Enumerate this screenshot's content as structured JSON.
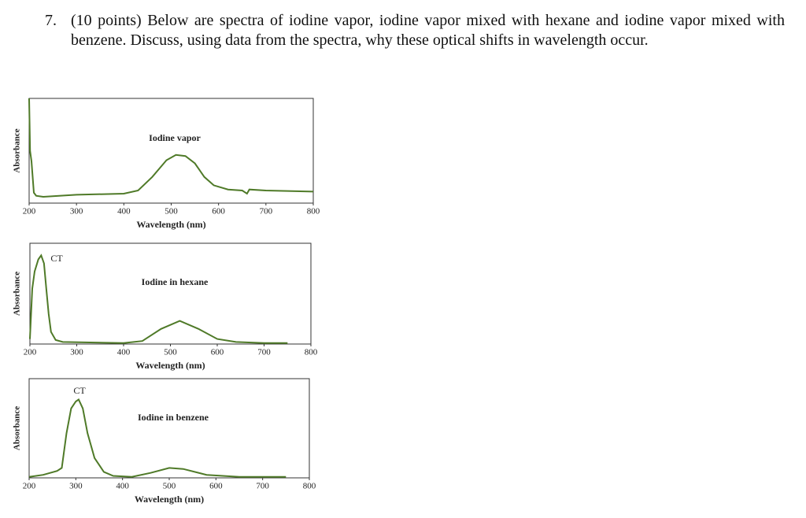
{
  "question": {
    "number": "7.",
    "text": "(10 points) Below are spectra of iodine vapor, iodine vapor mixed with hexane and iodine vapor mixed with benzene. Discuss, using data from the spectra, why these optical shifts in wavelength occur."
  },
  "chart_data": [
    {
      "type": "line",
      "label": "Iodine vapor",
      "xlabel": "Wavelength (nm)",
      "ylabel": "Absorbance",
      "color": "#4f7a28",
      "xlim": [
        200,
        800
      ],
      "xticks": [
        200,
        300,
        400,
        500,
        600,
        700,
        800
      ],
      "ylim": [
        0,
        1
      ],
      "x": [
        200,
        202,
        205,
        210,
        215,
        230,
        300,
        400,
        430,
        460,
        490,
        510,
        530,
        550,
        570,
        590,
        620,
        650,
        660,
        665,
        700,
        800
      ],
      "values": [
        1.0,
        0.5,
        0.4,
        0.1,
        0.07,
        0.06,
        0.08,
        0.09,
        0.12,
        0.25,
        0.41,
        0.46,
        0.45,
        0.38,
        0.25,
        0.17,
        0.13,
        0.12,
        0.09,
        0.13,
        0.12,
        0.11
      ]
    },
    {
      "type": "line",
      "label": "Iodine in hexane",
      "annotation": "CT",
      "xlabel": "Wavelength (nm)",
      "ylabel": "Absorbance",
      "color": "#4f7a28",
      "xlim": [
        200,
        800
      ],
      "xticks": [
        200,
        300,
        400,
        500,
        600,
        700,
        800
      ],
      "ylim": [
        0,
        1
      ],
      "x": [
        200,
        205,
        210,
        218,
        224,
        230,
        235,
        240,
        245,
        255,
        270,
        400,
        440,
        480,
        520,
        560,
        600,
        640,
        700,
        750
      ],
      "values": [
        0.05,
        0.55,
        0.72,
        0.84,
        0.88,
        0.8,
        0.55,
        0.3,
        0.12,
        0.04,
        0.02,
        0.01,
        0.03,
        0.15,
        0.23,
        0.15,
        0.05,
        0.02,
        0.01,
        0.01
      ]
    },
    {
      "type": "line",
      "label": "Iodine in benzene",
      "annotation": "CT",
      "xlabel": "Wavelength (nm)",
      "ylabel": "Absorbance",
      "color": "#4f7a28",
      "xlim": [
        200,
        800
      ],
      "xticks": [
        200,
        300,
        400,
        500,
        600,
        700,
        800
      ],
      "ylim": [
        0,
        1
      ],
      "x": [
        200,
        230,
        260,
        270,
        280,
        290,
        300,
        306,
        315,
        325,
        340,
        360,
        380,
        420,
        460,
        500,
        530,
        580,
        650,
        750
      ],
      "values": [
        0.01,
        0.03,
        0.07,
        0.1,
        0.45,
        0.7,
        0.77,
        0.79,
        0.7,
        0.45,
        0.2,
        0.06,
        0.02,
        0.01,
        0.05,
        0.1,
        0.09,
        0.03,
        0.01,
        0.01
      ]
    }
  ]
}
